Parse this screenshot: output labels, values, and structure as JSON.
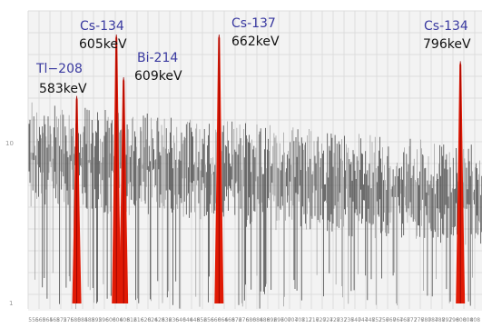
{
  "chart_data": {
    "type": "line",
    "title": "",
    "xlabel": "",
    "ylabel": "",
    "xlim": [
      556,
      808
    ],
    "x_tick_labels": [
      "556",
      "560",
      "564",
      "568",
      "572",
      "576",
      "580",
      "584",
      "588",
      "592",
      "596",
      "600",
      "604",
      "608",
      "612",
      "616",
      "620",
      "624",
      "628",
      "632",
      "636",
      "640",
      "644",
      "648",
      "652",
      "656",
      "660",
      "664",
      "668",
      "672",
      "676",
      "680",
      "684",
      "688",
      "692",
      "696",
      "700",
      "704",
      "708",
      "712",
      "716",
      "720",
      "724",
      "728",
      "732",
      "736",
      "740",
      "744",
      "748",
      "752",
      "756",
      "760",
      "764",
      "768",
      "772",
      "776",
      "780",
      "784",
      "788",
      "792",
      "796",
      "800",
      "804",
      "808"
    ],
    "y_tick_labels": [
      "1",
      "10"
    ],
    "y_scale": "log",
    "grid": true,
    "peaks": [
      {
        "nuclide": "Tl−208",
        "energy": "583keV",
        "energy_kev": 583,
        "relative_height": 0.77
      },
      {
        "nuclide": "Cs-134",
        "energy": "605keV",
        "energy_kev": 605,
        "relative_height": 1.0
      },
      {
        "nuclide": "Bi-214",
        "energy": "609keV",
        "energy_kev": 609,
        "relative_height": 0.84
      },
      {
        "nuclide": "Cs-137",
        "energy": "662keV",
        "energy_kev": 662,
        "relative_height": 1.0
      },
      {
        "nuclide": "Cs-134",
        "energy": "796keV",
        "energy_kev": 796,
        "relative_height": 0.9
      }
    ],
    "colors": {
      "peak": "#e01a05",
      "spectrum": "#4a4a4a",
      "label_nuclide": "#3a3aa0",
      "label_energy": "#111111"
    }
  }
}
